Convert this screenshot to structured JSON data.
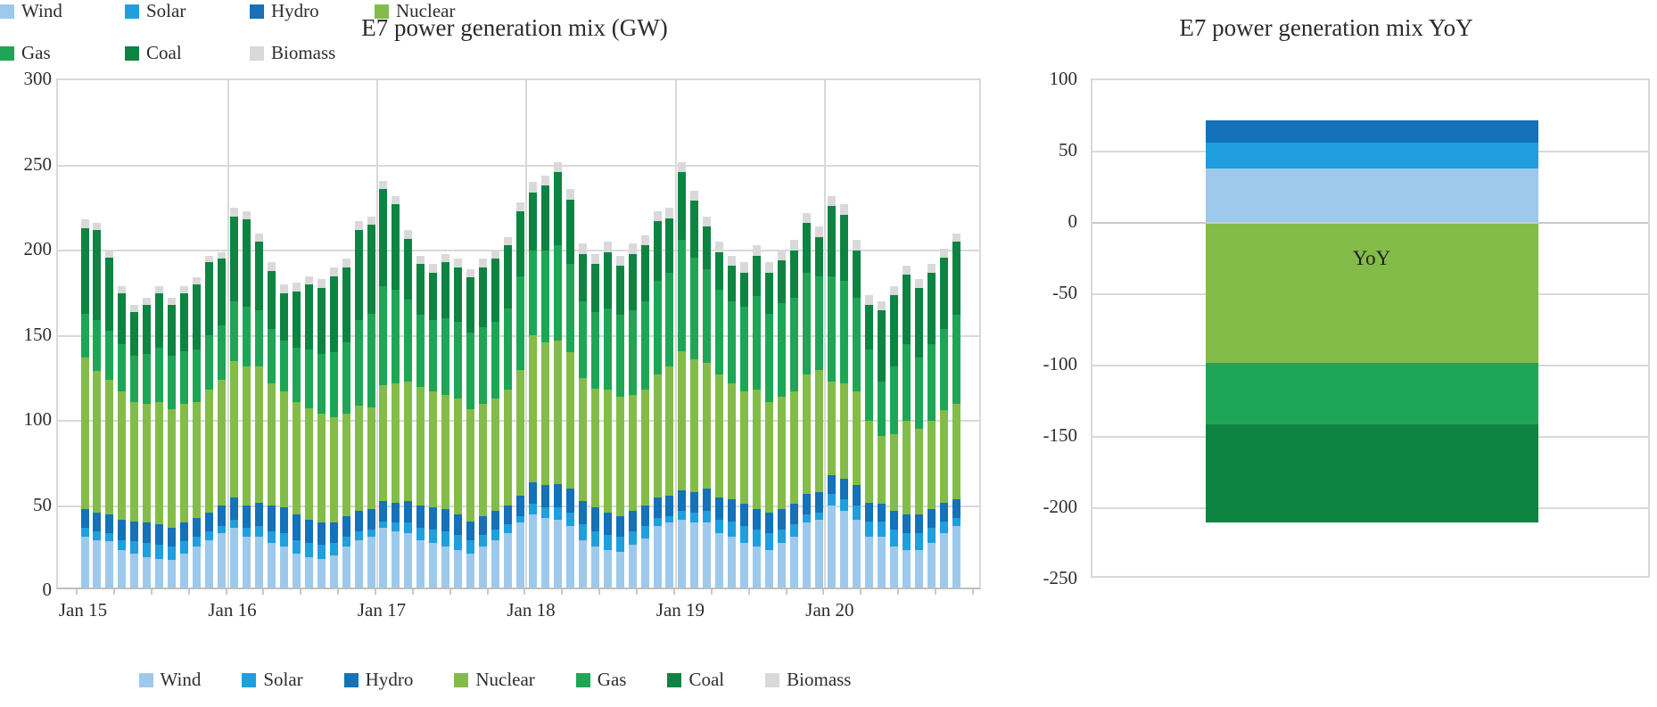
{
  "page": {
    "background": "#ffffff"
  },
  "chart_data": [
    {
      "type": "bar",
      "stacked": true,
      "title": "E7 power generation mix (GW)",
      "xlabel": "",
      "ylabel": "",
      "ylim": [
        0,
        300
      ],
      "yticks": [
        300,
        250,
        200,
        150,
        100,
        50,
        0
      ],
      "xtick_labels_shown": [
        "Jan 15",
        "Jan 16",
        "Jan 17",
        "Jan 18",
        "Jan 19",
        "Jan 20"
      ],
      "grid": "horizontal-50GW-and-vertical-year-lines",
      "legend_position": "bottom",
      "x": [
        "Jan 15",
        "Feb 15",
        "Mar 15",
        "Apr 15",
        "May 15",
        "Jun 15",
        "Jul 15",
        "Aug 15",
        "Sep 15",
        "Oct 15",
        "Nov 15",
        "Dec 15",
        "Jan 16",
        "Feb 16",
        "Mar 16",
        "Apr 16",
        "May 16",
        "Jun 16",
        "Jul 16",
        "Aug 16",
        "Sep 16",
        "Oct 16",
        "Nov 16",
        "Dec 16",
        "Jan 17",
        "Feb 17",
        "Mar 17",
        "Apr 17",
        "May 17",
        "Jun 17",
        "Jul 17",
        "Aug 17",
        "Sep 17",
        "Oct 17",
        "Nov 17",
        "Dec 17",
        "Jan 18",
        "Feb 18",
        "Mar 18",
        "Apr 18",
        "May 18",
        "Jun 18",
        "Jul 18",
        "Aug 18",
        "Sep 18",
        "Oct 18",
        "Nov 18",
        "Dec 18",
        "Jan 19",
        "Feb 19",
        "Mar 19",
        "Apr 19",
        "May 19",
        "Jun 19",
        "Jul 19",
        "Aug 19",
        "Sep 19",
        "Oct 19",
        "Nov 19",
        "Dec 19",
        "Jan 20",
        "Feb 20",
        "Mar 20",
        "Apr 20",
        "May 20",
        "Jun 20",
        "Jul 20",
        "Aug 20",
        "Sep 20",
        "Oct 20",
        "Nov 20"
      ],
      "series": [
        {
          "name": "Wind",
          "color": "#9DC9ED",
          "values": [
            30,
            28,
            27,
            22,
            20,
            18,
            17,
            16,
            20,
            24,
            28,
            32,
            35,
            30,
            30,
            26,
            24,
            20,
            18,
            17,
            19,
            24,
            28,
            30,
            35,
            33,
            32,
            28,
            26,
            24,
            22,
            20,
            24,
            28,
            32,
            38,
            43,
            41,
            40,
            36,
            28,
            24,
            22,
            21,
            25,
            29,
            36,
            38,
            40,
            38,
            38,
            32,
            30,
            26,
            24,
            22,
            26,
            30,
            38,
            40,
            48,
            45,
            40,
            30,
            30,
            24,
            22,
            22,
            26,
            32,
            36
          ]
        },
        {
          "name": "Solar",
          "color": "#1F9FDE",
          "values": [
            5,
            5,
            5,
            6,
            7,
            8,
            8,
            8,
            7,
            6,
            5,
            4,
            5,
            5,
            6,
            7,
            8,
            8,
            8,
            8,
            7,
            6,
            5,
            4,
            4,
            5,
            6,
            7,
            8,
            9,
            9,
            8,
            7,
            6,
            5,
            4,
            6,
            6,
            7,
            8,
            9,
            9,
            9,
            9,
            8,
            7,
            5,
            4,
            5,
            6,
            7,
            8,
            9,
            10,
            10,
            10,
            8,
            7,
            5,
            4,
            7,
            7,
            8,
            9,
            9,
            10,
            10,
            10,
            9,
            7,
            5
          ]
        },
        {
          "name": "Hydro",
          "color": "#1571B8",
          "values": [
            11,
            11,
            11,
            12,
            12,
            12,
            12,
            11,
            11,
            11,
            11,
            12,
            13,
            13,
            14,
            15,
            15,
            15,
            14,
            13,
            12,
            12,
            12,
            12,
            12,
            12,
            13,
            13,
            13,
            13,
            12,
            11,
            11,
            11,
            11,
            12,
            13,
            13,
            14,
            14,
            14,
            14,
            13,
            12,
            12,
            12,
            12,
            12,
            12,
            12,
            13,
            13,
            13,
            13,
            12,
            12,
            12,
            12,
            12,
            12,
            11,
            12,
            12,
            11,
            10,
            11,
            11,
            11,
            11,
            11,
            11
          ]
        },
        {
          "name": "Nuclear",
          "color": "#84BC49",
          "values": [
            89,
            83,
            79,
            75,
            70,
            70,
            72,
            70,
            70,
            68,
            72,
            74,
            80,
            82,
            80,
            72,
            68,
            66,
            65,
            64,
            62,
            60,
            62,
            60,
            68,
            70,
            70,
            70,
            68,
            67,
            68,
            66,
            66,
            66,
            68,
            74,
            86,
            84,
            84,
            80,
            72,
            70,
            72,
            70,
            68,
            68,
            72,
            76,
            82,
            78,
            74,
            72,
            68,
            66,
            70,
            65,
            66,
            66,
            70,
            72,
            55,
            56,
            55,
            48,
            40,
            45,
            55,
            50,
            52,
            54,
            56
          ]
        },
        {
          "name": "Gas",
          "color": "#1EA656",
          "values": [
            26,
            30,
            29,
            28,
            27,
            29,
            32,
            31,
            31,
            31,
            32,
            32,
            35,
            35,
            33,
            32,
            30,
            32,
            35,
            35,
            38,
            42,
            50,
            55,
            58,
            55,
            48,
            42,
            42,
            45,
            45,
            45,
            45,
            45,
            48,
            55,
            50,
            54,
            56,
            52,
            45,
            45,
            48,
            48,
            50,
            52,
            55,
            55,
            65,
            60,
            55,
            50,
            48,
            50,
            55,
            52,
            55,
            55,
            60,
            55,
            62,
            60,
            55,
            42,
            32,
            40,
            45,
            42,
            45,
            48,
            52
          ]
        },
        {
          "name": "Coal",
          "color": "#0E8442",
          "values": [
            50,
            53,
            43,
            30,
            26,
            29,
            32,
            30,
            34,
            38,
            43,
            39,
            50,
            51,
            40,
            34,
            28,
            33,
            38,
            39,
            45,
            44,
            53,
            52,
            57,
            50,
            36,
            30,
            28,
            33,
            32,
            32,
            35,
            37,
            37,
            38,
            34,
            38,
            43,
            38,
            28,
            28,
            33,
            29,
            33,
            33,
            35,
            32,
            40,
            33,
            25,
            22,
            21,
            20,
            24,
            24,
            25,
            28,
            29,
            23,
            41,
            39,
            28,
            26,
            42,
            42,
            41,
            41,
            42,
            42,
            43
          ]
        },
        {
          "name": "Biomass",
          "color": "#D9D9D9",
          "values": [
            5,
            4,
            4,
            4,
            4,
            4,
            4,
            4,
            4,
            4,
            4,
            4,
            5,
            5,
            5,
            5,
            5,
            5,
            5,
            5,
            5,
            5,
            5,
            5,
            5,
            5,
            5,
            5,
            5,
            5,
            5,
            5,
            5,
            5,
            5,
            5,
            6,
            6,
            6,
            6,
            6,
            6,
            6,
            6,
            6,
            6,
            6,
            6,
            6,
            6,
            6,
            6,
            6,
            6,
            6,
            6,
            6,
            6,
            6,
            6,
            6,
            6,
            6,
            6,
            5,
            5,
            5,
            5,
            5,
            5,
            5
          ]
        }
      ]
    },
    {
      "type": "bar",
      "stacked": true,
      "title": "E7 power generation mix YoY",
      "categories": [
        "YoY"
      ],
      "bar_label": "YoY",
      "ylim": [
        -250,
        100
      ],
      "yticks": [
        100,
        50,
        0,
        -50,
        -100,
        -150,
        -200,
        -250
      ],
      "grid": "horizontal-50",
      "legend_position": "bottom",
      "series": [
        {
          "name": "Wind",
          "color": "#9DC9ED",
          "value": 38
        },
        {
          "name": "Solar",
          "color": "#1F9FDE",
          "value": 18
        },
        {
          "name": "Hydro",
          "color": "#1571B8",
          "value": 16
        },
        {
          "name": "Nuclear",
          "color": "#84BC49",
          "value": -98
        },
        {
          "name": "Gas",
          "color": "#1EA656",
          "value": -43
        },
        {
          "name": "Coal",
          "color": "#0E8442",
          "value": -69
        },
        {
          "name": "Biomass",
          "color": "#D9D9D9",
          "value": 0
        }
      ]
    }
  ]
}
